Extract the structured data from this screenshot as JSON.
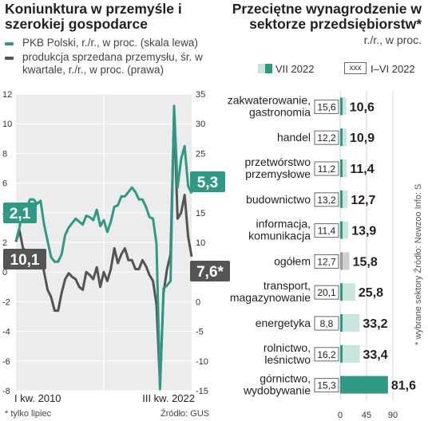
{
  "left": {
    "title": "Koniunktura w przemyśle i szerokiej gospodarce",
    "legend": [
      {
        "label": "PKB Polski, r./r., w proc. (skala lewa)",
        "color": "#2e9a84"
      },
      {
        "label": "produkcja sprzedana przemysłu, śr. w kwartale, r./r., w proc. (prawa)",
        "color": "#545454"
      }
    ],
    "x_label_start": "I kw. 2010",
    "x_label_end": "III kw. 2022",
    "left_ticks": [
      "12",
      "10",
      "8",
      "6",
      "4",
      "2",
      "0",
      "-2",
      "-4",
      "-6",
      "-8"
    ],
    "right_ticks": [
      "35",
      "30",
      "25",
      "20",
      "15",
      "10",
      "5",
      "0",
      "-5",
      "-10",
      "-15"
    ],
    "callouts": {
      "gdp_start": "2,1",
      "ind_start": "10,1",
      "gdp_end": "5,3",
      "ind_end": "7,6*"
    },
    "footnote": "* tylko lipiec",
    "source": "Źródło: GUS"
  },
  "right": {
    "title": "Przeciętne wynagrodzenie w sektorze przedsiębiorstw*",
    "subtitle": "r./r., w proc.",
    "legend_current": "VII 2022",
    "legend_box": "xxx",
    "legend_prior": "I–VI 2022",
    "x_ticks": [
      "0",
      "45",
      "90"
    ],
    "side_note": "* wybrane sektory   Źródło: Newzoo   Info: S"
  },
  "chart_data": [
    {
      "type": "line",
      "title": "Koniunktura w przemyśle i szerokiej gospodarce",
      "x": [
        "2010Q1",
        "2010Q2",
        "2010Q3",
        "2010Q4",
        "2011Q1",
        "2011Q2",
        "2011Q3",
        "2011Q4",
        "2012Q1",
        "2012Q2",
        "2012Q3",
        "2012Q4",
        "2013Q1",
        "2013Q2",
        "2013Q3",
        "2013Q4",
        "2014Q1",
        "2014Q2",
        "2014Q3",
        "2014Q4",
        "2015Q1",
        "2015Q2",
        "2015Q3",
        "2015Q4",
        "2016Q1",
        "2016Q2",
        "2016Q3",
        "2016Q4",
        "2017Q1",
        "2017Q2",
        "2017Q3",
        "2017Q4",
        "2018Q1",
        "2018Q2",
        "2018Q3",
        "2018Q4",
        "2019Q1",
        "2019Q2",
        "2019Q3",
        "2019Q4",
        "2020Q1",
        "2020Q2",
        "2020Q3",
        "2020Q4",
        "2021Q1",
        "2021Q2",
        "2021Q3",
        "2021Q4",
        "2022Q1",
        "2022Q2",
        "2022Q3"
      ],
      "series": [
        {
          "name": "PKB Polski, r./r., w proc. (skala lewa)",
          "axis": "left",
          "values": [
            2.1,
            3.0,
            4.4,
            4.3,
            4.9,
            4.9,
            4.6,
            4.8,
            3.2,
            2.1,
            1.0,
            0.7,
            0.7,
            1.2,
            2.5,
            3.0,
            3.3,
            3.6,
            3.4,
            3.2,
            3.8,
            3.7,
            3.5,
            4.2,
            3.1,
            3.5,
            2.7,
            3.4,
            4.4,
            4.5,
            5.1,
            5.1,
            5.4,
            5.7,
            5.4,
            4.9,
            4.9,
            4.4,
            3.7,
            3.6,
            1.9,
            -7.9,
            -1.1,
            -0.9,
            -0.6,
            11.2,
            5.7,
            7.6,
            8.5,
            5.8,
            5.3
          ]
        },
        {
          "name": "produkcja sprzedana przemysłu, śr. w kwartale, r./r., w proc. (prawa)",
          "axis": "right",
          "values": [
            10.1,
            12.0,
            9.0,
            8.5,
            8.0,
            6.5,
            7.5,
            7.8,
            5.0,
            2.0,
            0.8,
            -1.5,
            -1.5,
            1.5,
            3.8,
            4.8,
            4.2,
            3.8,
            2.5,
            2.0,
            5.0,
            4.5,
            3.8,
            5.8,
            2.5,
            5.0,
            3.5,
            5.5,
            9.0,
            6.5,
            8.0,
            9.0,
            7.0,
            7.0,
            5.5,
            5.5,
            7.0,
            6.0,
            4.5,
            3.5,
            -0.5,
            -14.0,
            1.5,
            5.5,
            8.0,
            31.5,
            14.0,
            15.0,
            18.0,
            11.0,
            7.6
          ]
        }
      ],
      "ylim_left": [
        -8,
        12
      ],
      "ylim_right": [
        -15,
        35
      ],
      "xlabel_start": "I kw. 2010",
      "xlabel_end": "III kw. 2022",
      "grid": true
    },
    {
      "type": "bar",
      "title": "Przeciętne wynagrodzenie w sektorze przedsiębiorstw*",
      "subtitle": "r./r., w proc.",
      "categories": [
        "zakwaterowanie, gastronomia",
        "handel",
        "przetwórstwo przemysłowe",
        "budownictwo",
        "informacja, komunikacja",
        "ogółem",
        "transport, magazynowanie",
        "energetyka",
        "rolnictwo, leśnictwo",
        "górnictwo, wydobywanie"
      ],
      "series": [
        {
          "name": "VII 2022",
          "values": [
            10.6,
            10.9,
            11.4,
            12.7,
            13.9,
            15.8,
            25.8,
            33.2,
            33.4,
            81.6
          ]
        },
        {
          "name": "I–VI 2022",
          "values": [
            15.6,
            12.2,
            11.2,
            13.2,
            11.4,
            12.7,
            20.1,
            8.8,
            16.2,
            15.3
          ]
        }
      ],
      "xlim": [
        0,
        90
      ]
    }
  ]
}
